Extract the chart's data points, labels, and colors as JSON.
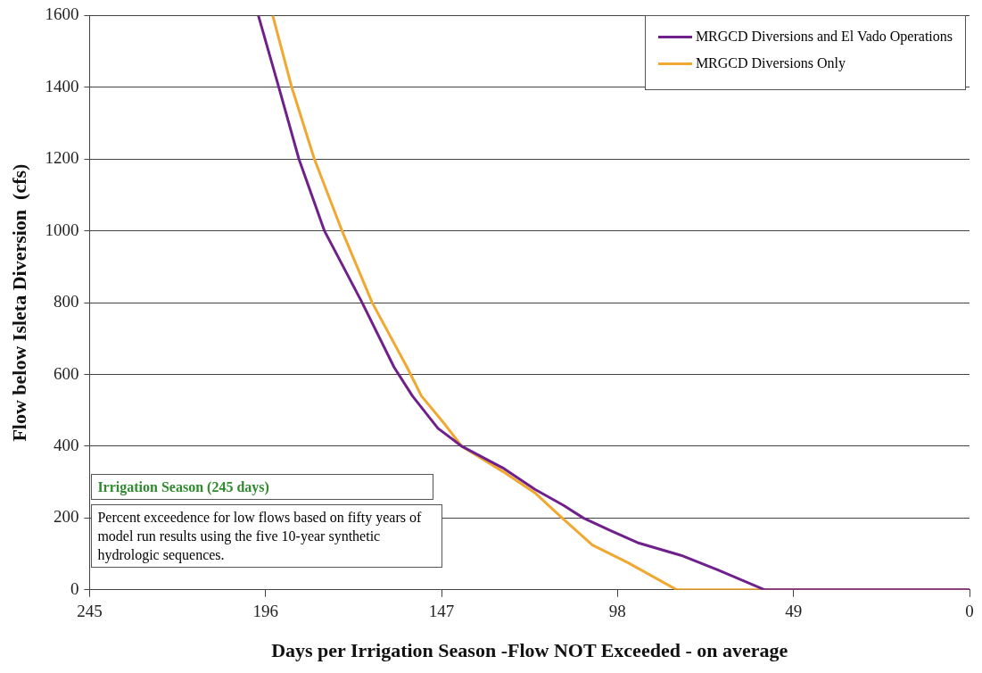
{
  "chart_data": {
    "type": "line",
    "xlabel": "Days per Irrigation Season -Flow NOT Exceeded - on average",
    "ylabel": "Flow below Isleta Diversion  (cfs)",
    "xlim": [
      245,
      0
    ],
    "xticks": [
      245,
      196,
      147,
      98,
      49,
      0
    ],
    "ylim": [
      0,
      1600
    ],
    "yticks": [
      0,
      200,
      400,
      600,
      800,
      1000,
      1200,
      1400,
      1600
    ],
    "grid": "y",
    "legend": "top right",
    "marker": "none",
    "line_style": "solid",
    "annotations": [
      "Irrigation Season  (245 days)",
      "Percent exceedence for low flows based on fifty years of model run results using the five 10-year synthetic hydrologic sequences."
    ],
    "series": [
      {
        "name": "MRGCD Diversions and El Vado Operations",
        "color": "#70208a",
        "x": [
          198,
          192.3,
          186.7,
          179.6,
          169.1,
          160.2,
          155.1,
          148,
          141.4,
          130,
          121,
          113,
          107.5,
          100,
          92,
          80,
          70,
          57,
          0
        ],
        "values": [
          1600,
          1400,
          1200,
          1000,
          800,
          620,
          540,
          450,
          400,
          340,
          280,
          235,
          200,
          165,
          130,
          95,
          55,
          0,
          0
        ]
      },
      {
        "name": "MRGCD Diversions Only",
        "color": "#f0a830",
        "x": [
          194,
          188.7,
          182.4,
          174.7,
          166.3,
          156.6,
          152.6,
          146,
          141.4,
          130,
          121,
          113.4,
          105,
          95,
          81.5,
          0
        ],
        "values": [
          1600,
          1400,
          1200,
          1000,
          800,
          620,
          540,
          460,
          400,
          330,
          270,
          200,
          125,
          75,
          0,
          0
        ]
      }
    ]
  }
}
